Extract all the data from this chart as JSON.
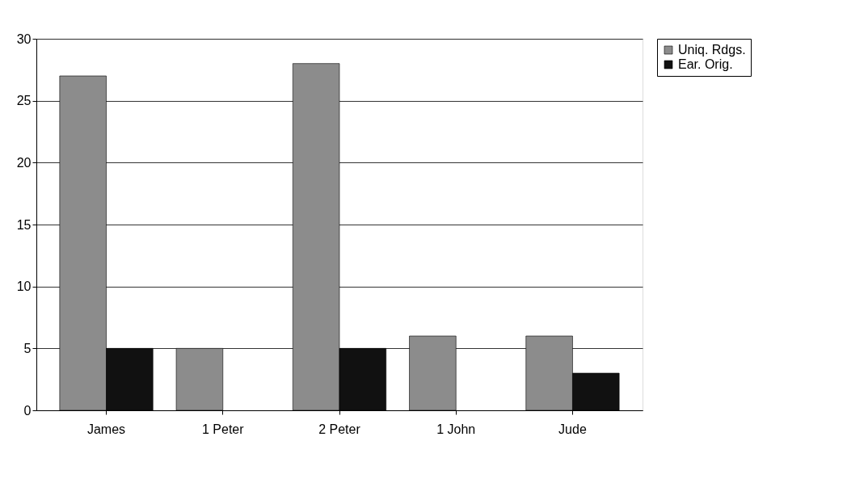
{
  "chart_data": {
    "type": "bar",
    "categories": [
      "James",
      "1 Peter",
      "2 Peter",
      "1 John",
      "Jude"
    ],
    "series": [
      {
        "name": "Uniq. Rdgs.",
        "color": "#8c8c8c",
        "values": [
          27,
          5,
          28,
          6,
          6
        ]
      },
      {
        "name": "Ear. Orig.",
        "color": "#111111",
        "values": [
          5,
          null,
          5,
          null,
          3
        ]
      }
    ],
    "ylim": [
      0,
      30
    ],
    "yticks": [
      0,
      5,
      10,
      15,
      20,
      25,
      30
    ],
    "grid": "y",
    "legend": "right"
  }
}
